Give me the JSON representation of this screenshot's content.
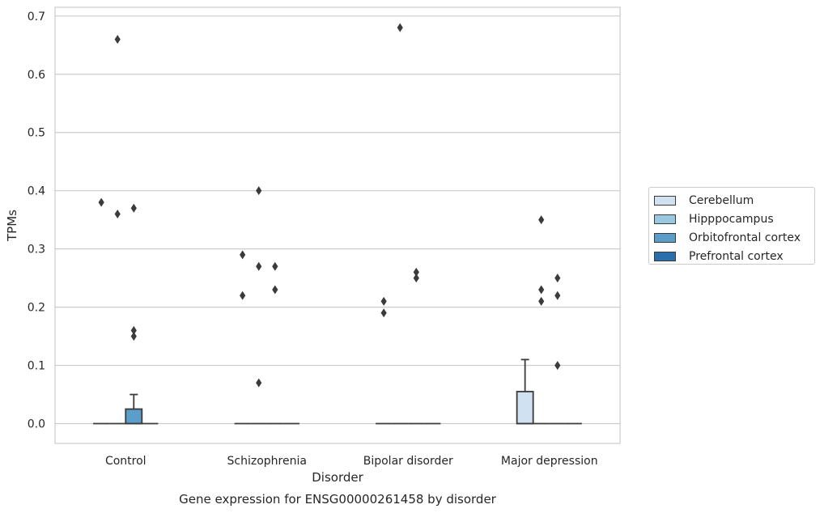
{
  "chart_data": {
    "type": "box",
    "title": "Gene expression for ENSG00000261458 by disorder",
    "xlabel": "Disorder",
    "ylabel": "TPMs",
    "ylim": [
      -0.034,
      0.715
    ],
    "yticks": [
      "0.0",
      "0.1",
      "0.2",
      "0.3",
      "0.4",
      "0.5",
      "0.6",
      "0.7"
    ],
    "categories": [
      "Control",
      "Schizophrenia",
      "Bipolar disorder",
      "Major depression"
    ],
    "grid": true,
    "legend_position": "right",
    "series": [
      {
        "name": "Cerebellum",
        "color": "#d0e1f2",
        "boxes": [
          {
            "q1": 0,
            "median": 0,
            "q3": 0,
            "whisker_low": 0,
            "whisker_high": 0,
            "outliers": [
              0.38
            ]
          },
          {
            "q1": 0,
            "median": 0,
            "q3": 0,
            "whisker_low": 0,
            "whisker_high": 0,
            "outliers": [
              0.29,
              0.22
            ]
          },
          {
            "q1": 0,
            "median": 0,
            "q3": 0,
            "whisker_low": 0,
            "whisker_high": 0,
            "outliers": [
              0.21,
              0.19
            ]
          },
          {
            "q1": 0,
            "median": 0,
            "q3": 0.055,
            "whisker_low": 0,
            "whisker_high": 0.11,
            "outliers": []
          }
        ]
      },
      {
        "name": "Hipppocampus",
        "color": "#9ac8e0",
        "boxes": [
          {
            "q1": 0,
            "median": 0,
            "q3": 0,
            "whisker_low": 0,
            "whisker_high": 0,
            "outliers": [
              0.66,
              0.36
            ]
          },
          {
            "q1": 0,
            "median": 0,
            "q3": 0,
            "whisker_low": 0,
            "whisker_high": 0,
            "outliers": [
              0.4,
              0.27,
              0.07
            ]
          },
          {
            "q1": 0,
            "median": 0,
            "q3": 0,
            "whisker_low": 0,
            "whisker_high": 0,
            "outliers": [
              0.68
            ]
          },
          {
            "q1": 0,
            "median": 0,
            "q3": 0,
            "whisker_low": 0,
            "whisker_high": 0,
            "outliers": [
              0.35,
              0.23,
              0.21
            ]
          }
        ]
      },
      {
        "name": "Orbitofrontal cortex",
        "color": "#5a9ec9",
        "boxes": [
          {
            "q1": 0,
            "median": 0,
            "q3": 0.025,
            "whisker_low": 0,
            "whisker_high": 0.05,
            "outliers": [
              0.37,
              0.16,
              0.15
            ]
          },
          {
            "q1": 0,
            "median": 0,
            "q3": 0,
            "whisker_low": 0,
            "whisker_high": 0,
            "outliers": [
              0.27,
              0.23
            ]
          },
          {
            "q1": 0,
            "median": 0,
            "q3": 0,
            "whisker_low": 0,
            "whisker_high": 0,
            "outliers": [
              0.26,
              0.25
            ]
          },
          {
            "q1": 0,
            "median": 0,
            "q3": 0,
            "whisker_low": 0,
            "whisker_high": 0,
            "outliers": [
              0.25,
              0.22,
              0.1
            ]
          }
        ]
      },
      {
        "name": "Prefrontal cortex",
        "color": "#2a6eab",
        "boxes": [
          {
            "q1": 0,
            "median": 0,
            "q3": 0,
            "whisker_low": 0,
            "whisker_high": 0,
            "outliers": []
          },
          {
            "q1": 0,
            "median": 0,
            "q3": 0,
            "whisker_low": 0,
            "whisker_high": 0,
            "outliers": []
          },
          {
            "q1": 0,
            "median": 0,
            "q3": 0,
            "whisker_low": 0,
            "whisker_high": 0,
            "outliers": []
          },
          {
            "q1": 0,
            "median": 0,
            "q3": 0,
            "whisker_low": 0,
            "whisker_high": 0,
            "outliers": []
          }
        ]
      }
    ]
  }
}
